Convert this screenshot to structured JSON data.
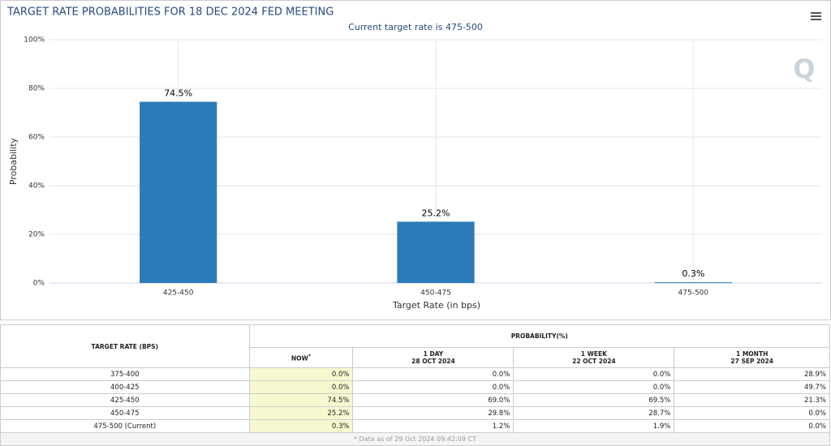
{
  "chart_data": {
    "type": "bar",
    "title": "TARGET RATE PROBABILITIES FOR 18 DEC 2024 FED MEETING",
    "subtitle": "Current target rate is 475-500",
    "x_label": "Target Rate (in bps)",
    "y_label": "Probability",
    "categories": [
      "425-450",
      "450-475",
      "475-500"
    ],
    "values": [
      74.5,
      25.2,
      0.3
    ],
    "value_labels": [
      "74.5%",
      "25.2%",
      "0.3%"
    ],
    "color": "#2b7bb9",
    "ylim": [
      0,
      100
    ],
    "yticks": [
      {
        "value": 0,
        "label": "0%"
      },
      {
        "value": 20,
        "label": "20%"
      },
      {
        "value": 40,
        "label": "40%"
      },
      {
        "value": 60,
        "label": "60%"
      },
      {
        "value": 80,
        "label": "80%"
      },
      {
        "value": 100,
        "label": "100%"
      }
    ],
    "grid": true
  },
  "table": {
    "row_header": "TARGET RATE (BPS)",
    "group_header": "PROBABILITY(%)",
    "columns": [
      {
        "label": "NOW",
        "note": "*"
      },
      {
        "label": "1 DAY",
        "date": "28 OCT 2024"
      },
      {
        "label": "1 WEEK",
        "date": "22 OCT 2024"
      },
      {
        "label": "1 MONTH",
        "date": "27 SEP 2024"
      }
    ],
    "rows": [
      [
        "375-400",
        "0.0%",
        "0.0%",
        "0.0%",
        "28.9%"
      ],
      [
        "400-425",
        "0.0%",
        "0.0%",
        "0.0%",
        "49.7%"
      ],
      [
        "425-450",
        "74.5%",
        "69.0%",
        "69.5%",
        "21.3%"
      ],
      [
        "450-475",
        "25.2%",
        "29.8%",
        "28.7%",
        "0.0%"
      ],
      [
        "475-500 (Current)",
        "0.3%",
        "1.2%",
        "1.9%",
        "0.0%"
      ]
    ],
    "footnote": "* Data as of 29 Oct 2024 09:42:09 CT"
  }
}
